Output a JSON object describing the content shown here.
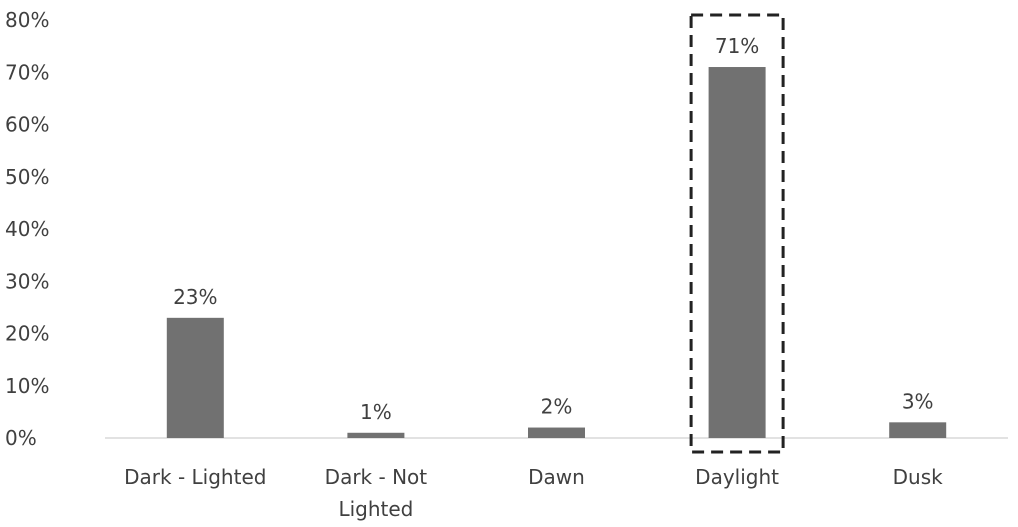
{
  "chart_data": {
    "type": "bar",
    "categories": [
      "Dark - Lighted",
      "Dark - Not Lighted",
      "Dawn",
      "Daylight",
      "Dusk"
    ],
    "values": [
      23,
      1,
      2,
      71,
      3
    ],
    "data_labels": [
      "23%",
      "1%",
      "2%",
      "71%",
      "3%"
    ],
    "ylim": [
      0,
      80
    ],
    "yticks": [
      "0%",
      "10%",
      "20%",
      "30%",
      "40%",
      "50%",
      "60%",
      "70%",
      "80%"
    ],
    "bar_color": "#717171",
    "highlight": {
      "category": "Daylight",
      "style": "dashed box"
    },
    "grid": false
  }
}
